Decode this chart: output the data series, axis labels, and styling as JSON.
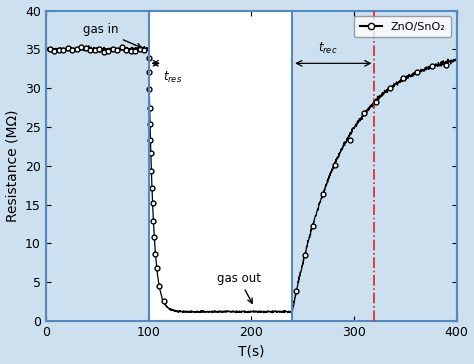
{
  "xlim": [
    0,
    400
  ],
  "ylim": [
    0,
    40
  ],
  "xlabel": "T(s)",
  "ylabel": "Resistance (MΩ)",
  "xticks": [
    0,
    100,
    200,
    300,
    400
  ],
  "yticks": [
    0,
    5,
    10,
    15,
    20,
    25,
    30,
    35,
    40
  ],
  "legend_label": "ZnO/SnO₂",
  "bg_color": "#cce0f0",
  "white_bg": "#ffffff",
  "line_color": "black",
  "vline1_x": 100,
  "vline2_x": 240,
  "vline3_x": 320,
  "border_color": "#5588bb",
  "red_line_color": "#dd2222",
  "baseline_resistance": 35.0,
  "min_resistance": 1.2,
  "tau_down": 4.5,
  "tau_up": 50,
  "seed": 42
}
